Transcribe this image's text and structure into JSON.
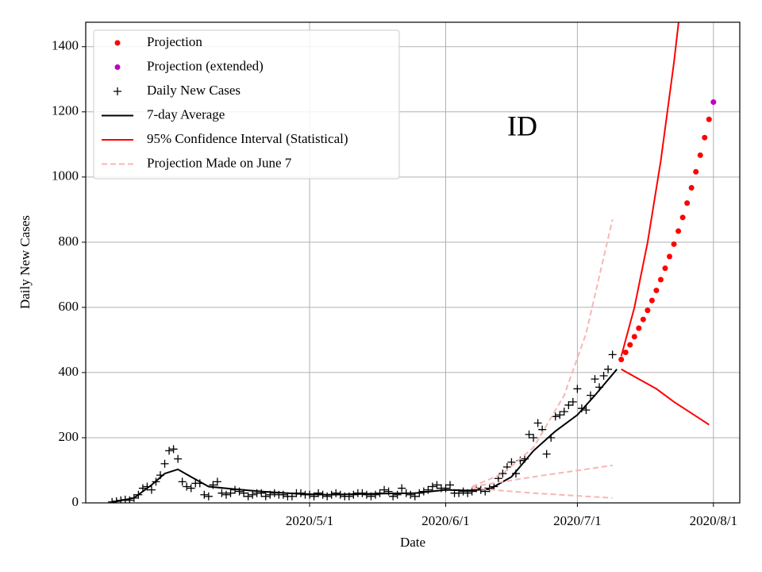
{
  "chart_data": {
    "type": "line",
    "annotations": [
      "ID"
    ],
    "xlabel": "Date",
    "ylabel": "Daily New Cases",
    "xlim": [
      "2020-03-11",
      "2020-08-07"
    ],
    "xticks": [
      {
        "value": "2020-05-01",
        "label": "2020/5/1"
      },
      {
        "value": "2020-06-01",
        "label": "2020/6/1"
      },
      {
        "value": "2020-07-01",
        "label": "2020/7/1"
      },
      {
        "value": "2020-08-01",
        "label": "2020/8/1"
      }
    ],
    "ylim": [
      0,
      1475
    ],
    "yticks": [
      0,
      200,
      400,
      600,
      800,
      1000,
      1200,
      1400
    ],
    "grid": true,
    "legend": "upper left",
    "series": [
      {
        "name": "Projection",
        "color": "#ff0000",
        "marker": "dot",
        "x": [
          "2020-07-11",
          "2020-07-12",
          "2020-07-13",
          "2020-07-14",
          "2020-07-15",
          "2020-07-16",
          "2020-07-17",
          "2020-07-18",
          "2020-07-19",
          "2020-07-20",
          "2020-07-21",
          "2020-07-22",
          "2020-07-23",
          "2020-07-24",
          "2020-07-25",
          "2020-07-26",
          "2020-07-27",
          "2020-07-28",
          "2020-07-29",
          "2020-07-30",
          "2020-07-31"
        ],
        "values": [
          440,
          462,
          485,
          510,
          536,
          563,
          591,
          621,
          652,
          685,
          720,
          756,
          794,
          834,
          876,
          920,
          967,
          1016,
          1067,
          1121,
          1177
        ]
      },
      {
        "name": "Projection (extended)",
        "color": "#bf00bf",
        "marker": "dot",
        "x": [
          "2020-08-01"
        ],
        "values": [
          1230
        ]
      },
      {
        "name": "Daily New Cases",
        "color": "#000000",
        "marker": "plus",
        "x": [
          "2020-03-17",
          "2020-03-18",
          "2020-03-19",
          "2020-03-20",
          "2020-03-21",
          "2020-03-22",
          "2020-03-23",
          "2020-03-24",
          "2020-03-25",
          "2020-03-26",
          "2020-03-27",
          "2020-03-28",
          "2020-03-29",
          "2020-03-30",
          "2020-03-31",
          "2020-04-01",
          "2020-04-02",
          "2020-04-03",
          "2020-04-04",
          "2020-04-05",
          "2020-04-06",
          "2020-04-07",
          "2020-04-08",
          "2020-04-09",
          "2020-04-10",
          "2020-04-11",
          "2020-04-12",
          "2020-04-13",
          "2020-04-14",
          "2020-04-15",
          "2020-04-16",
          "2020-04-17",
          "2020-04-18",
          "2020-04-19",
          "2020-04-20",
          "2020-04-21",
          "2020-04-22",
          "2020-04-23",
          "2020-04-24",
          "2020-04-25",
          "2020-04-26",
          "2020-04-27",
          "2020-04-28",
          "2020-04-29",
          "2020-04-30",
          "2020-05-01",
          "2020-05-02",
          "2020-05-03",
          "2020-05-04",
          "2020-05-05",
          "2020-05-06",
          "2020-05-07",
          "2020-05-08",
          "2020-05-09",
          "2020-05-10",
          "2020-05-11",
          "2020-05-12",
          "2020-05-13",
          "2020-05-14",
          "2020-05-15",
          "2020-05-16",
          "2020-05-17",
          "2020-05-18",
          "2020-05-19",
          "2020-05-20",
          "2020-05-21",
          "2020-05-22",
          "2020-05-23",
          "2020-05-24",
          "2020-05-25",
          "2020-05-26",
          "2020-05-27",
          "2020-05-28",
          "2020-05-29",
          "2020-05-30",
          "2020-05-31",
          "2020-06-01",
          "2020-06-02",
          "2020-06-03",
          "2020-06-04",
          "2020-06-05",
          "2020-06-06",
          "2020-06-07",
          "2020-06-08",
          "2020-06-09",
          "2020-06-10",
          "2020-06-11",
          "2020-06-12",
          "2020-06-13",
          "2020-06-14",
          "2020-06-15",
          "2020-06-16",
          "2020-06-17",
          "2020-06-18",
          "2020-06-19",
          "2020-06-20",
          "2020-06-21",
          "2020-06-22",
          "2020-06-23",
          "2020-06-24",
          "2020-06-25",
          "2020-06-26",
          "2020-06-27",
          "2020-06-28",
          "2020-06-29",
          "2020-06-30",
          "2020-07-01",
          "2020-07-02",
          "2020-07-03",
          "2020-07-04",
          "2020-07-05",
          "2020-07-06",
          "2020-07-07",
          "2020-07-08",
          "2020-07-09"
        ],
        "values": [
          3,
          5,
          8,
          10,
          8,
          15,
          25,
          45,
          50,
          40,
          65,
          85,
          120,
          160,
          165,
          135,
          65,
          50,
          45,
          60,
          60,
          25,
          20,
          55,
          65,
          30,
          25,
          30,
          40,
          35,
          30,
          20,
          25,
          30,
          30,
          20,
          25,
          30,
          25,
          25,
          20,
          20,
          30,
          30,
          25,
          25,
          20,
          30,
          25,
          20,
          25,
          30,
          25,
          20,
          20,
          25,
          30,
          30,
          25,
          20,
          25,
          30,
          40,
          35,
          20,
          25,
          45,
          30,
          25,
          20,
          30,
          35,
          40,
          50,
          55,
          45,
          45,
          55,
          30,
          30,
          35,
          30,
          35,
          45,
          40,
          35,
          45,
          50,
          75,
          90,
          110,
          125,
          90,
          130,
          135,
          210,
          200,
          245,
          225,
          150,
          200,
          265,
          270,
          280,
          300,
          310,
          350,
          290,
          285,
          330,
          380,
          355,
          390,
          410,
          455
        ]
      },
      {
        "name": "7-day Average",
        "color": "#000000",
        "marker": "line",
        "x": [
          "2020-03-17",
          "2020-03-22",
          "2020-03-26",
          "2020-03-29",
          "2020-04-01",
          "2020-04-04",
          "2020-04-08",
          "2020-04-14",
          "2020-04-20",
          "2020-04-28",
          "2020-05-05",
          "2020-05-15",
          "2020-05-25",
          "2020-06-01",
          "2020-06-06",
          "2020-06-11",
          "2020-06-16",
          "2020-06-21",
          "2020-06-26",
          "2020-07-01",
          "2020-07-05",
          "2020-07-10"
        ],
        "values": [
          2,
          15,
          55,
          90,
          103,
          80,
          50,
          42,
          35,
          28,
          25,
          28,
          30,
          40,
          38,
          42,
          80,
          160,
          220,
          270,
          330,
          410
        ]
      },
      {
        "name": "95% Confidence Interval (Statistical)",
        "color": "#ff0000",
        "marker": "line",
        "x": [
          "2020-07-11",
          "2020-07-14",
          "2020-07-17",
          "2020-07-20",
          "2020-07-23",
          "2020-07-26"
        ],
        "values": [
          450,
          600,
          800,
          1050,
          1350,
          1700
        ]
      },
      {
        "color": "#ff0000",
        "marker": "line",
        "x": [
          "2020-07-11",
          "2020-07-15",
          "2020-07-19",
          "2020-07-23",
          "2020-07-27",
          "2020-07-31"
        ],
        "values": [
          410,
          380,
          350,
          310,
          275,
          240
        ]
      },
      {
        "name": "Projection Made on June 7",
        "color": "#f7b6b6",
        "marker": "dashed",
        "x": [
          "2020-06-07",
          "2020-06-14",
          "2020-06-21",
          "2020-06-28",
          "2020-07-03",
          "2020-07-09"
        ],
        "values": [
          50,
          90,
          170,
          330,
          520,
          870
        ]
      },
      {
        "color": "#f7b6b6",
        "marker": "dashed",
        "x": [
          "2020-06-07",
          "2020-06-21",
          "2020-07-09"
        ],
        "values": [
          50,
          80,
          115
        ]
      },
      {
        "color": "#f7b6b6",
        "marker": "dashed",
        "x": [
          "2020-06-07",
          "2020-06-21",
          "2020-07-09"
        ],
        "values": [
          45,
          30,
          15
        ]
      }
    ]
  }
}
